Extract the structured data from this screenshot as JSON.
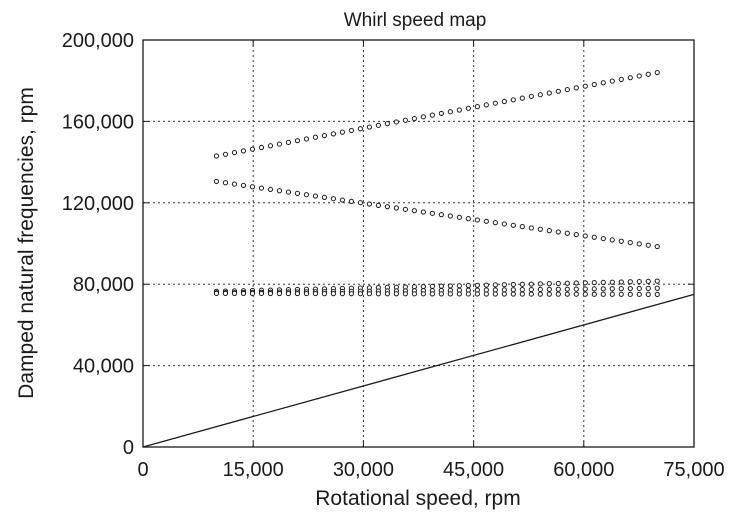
{
  "chart_data": {
    "type": "scatter",
    "title": "Whirl speed map",
    "xlabel": "Rotational speed, rpm",
    "ylabel": "Damped natural frequencies, rpm",
    "xlim": [
      0,
      75000
    ],
    "ylim": [
      0,
      200000
    ],
    "xticks": [
      0,
      15000,
      30000,
      45000,
      60000,
      75000
    ],
    "xtick_labels": [
      "0",
      "15,000",
      "30,000",
      "45,000",
      "60,000",
      "75,000"
    ],
    "yticks": [
      0,
      40000,
      80000,
      120000,
      160000,
      200000
    ],
    "ytick_labels": [
      "0",
      "40,000",
      "80,000",
      "120,000",
      "160,000",
      "200,000"
    ],
    "grid": true,
    "grid_style": "dotted",
    "marker": "open-circle",
    "series": [
      {
        "kind": "markers",
        "start": [
          10000,
          143000
        ],
        "end": [
          70000,
          184000
        ],
        "points": 50
      },
      {
        "kind": "markers",
        "start": [
          10000,
          130500
        ],
        "end": [
          70000,
          98500
        ],
        "points": 50
      },
      {
        "kind": "markers",
        "start": [
          10000,
          76500
        ],
        "end": [
          70000,
          81500
        ],
        "points": 50
      },
      {
        "kind": "markers",
        "start": [
          10000,
          75800
        ],
        "end": [
          70000,
          78000
        ],
        "points": 50
      },
      {
        "kind": "markers",
        "start": [
          10000,
          75500
        ],
        "end": [
          70000,
          75000
        ],
        "points": 50
      },
      {
        "kind": "line",
        "x": [
          0,
          75000
        ],
        "y": [
          0,
          75000
        ]
      }
    ],
    "colors": {
      "ink": "#1a1a1a",
      "grid": "#333333"
    }
  }
}
